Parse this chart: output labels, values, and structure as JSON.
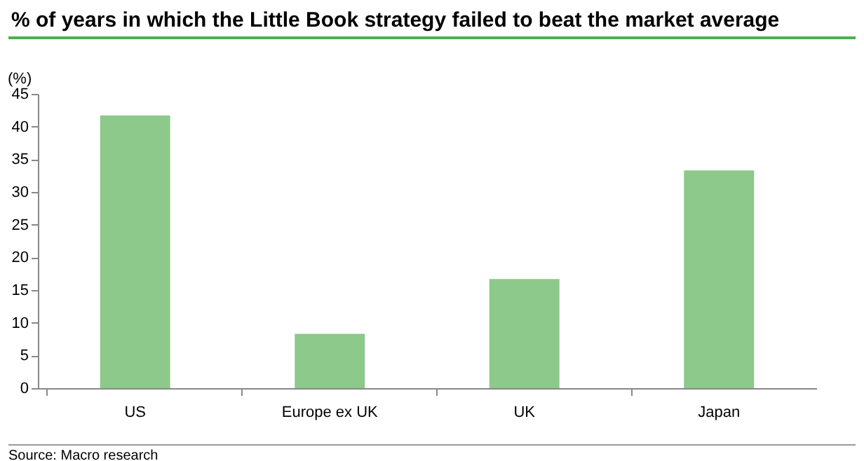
{
  "chart_data": {
    "type": "bar",
    "title": "% of years in which the Little Book strategy failed to beat the market average",
    "ylabel": "(%)",
    "categories": [
      "US",
      "Europe ex UK",
      "UK",
      "Japan"
    ],
    "values": [
      41.7,
      8.3,
      16.7,
      33.3
    ],
    "color": "#8cc98a",
    "ylim": [
      0,
      45
    ],
    "yticks": [
      0,
      5,
      10,
      15,
      20,
      25,
      30,
      35,
      40,
      45
    ],
    "grid": false,
    "annotations": [
      "Source: Macro research"
    ]
  }
}
